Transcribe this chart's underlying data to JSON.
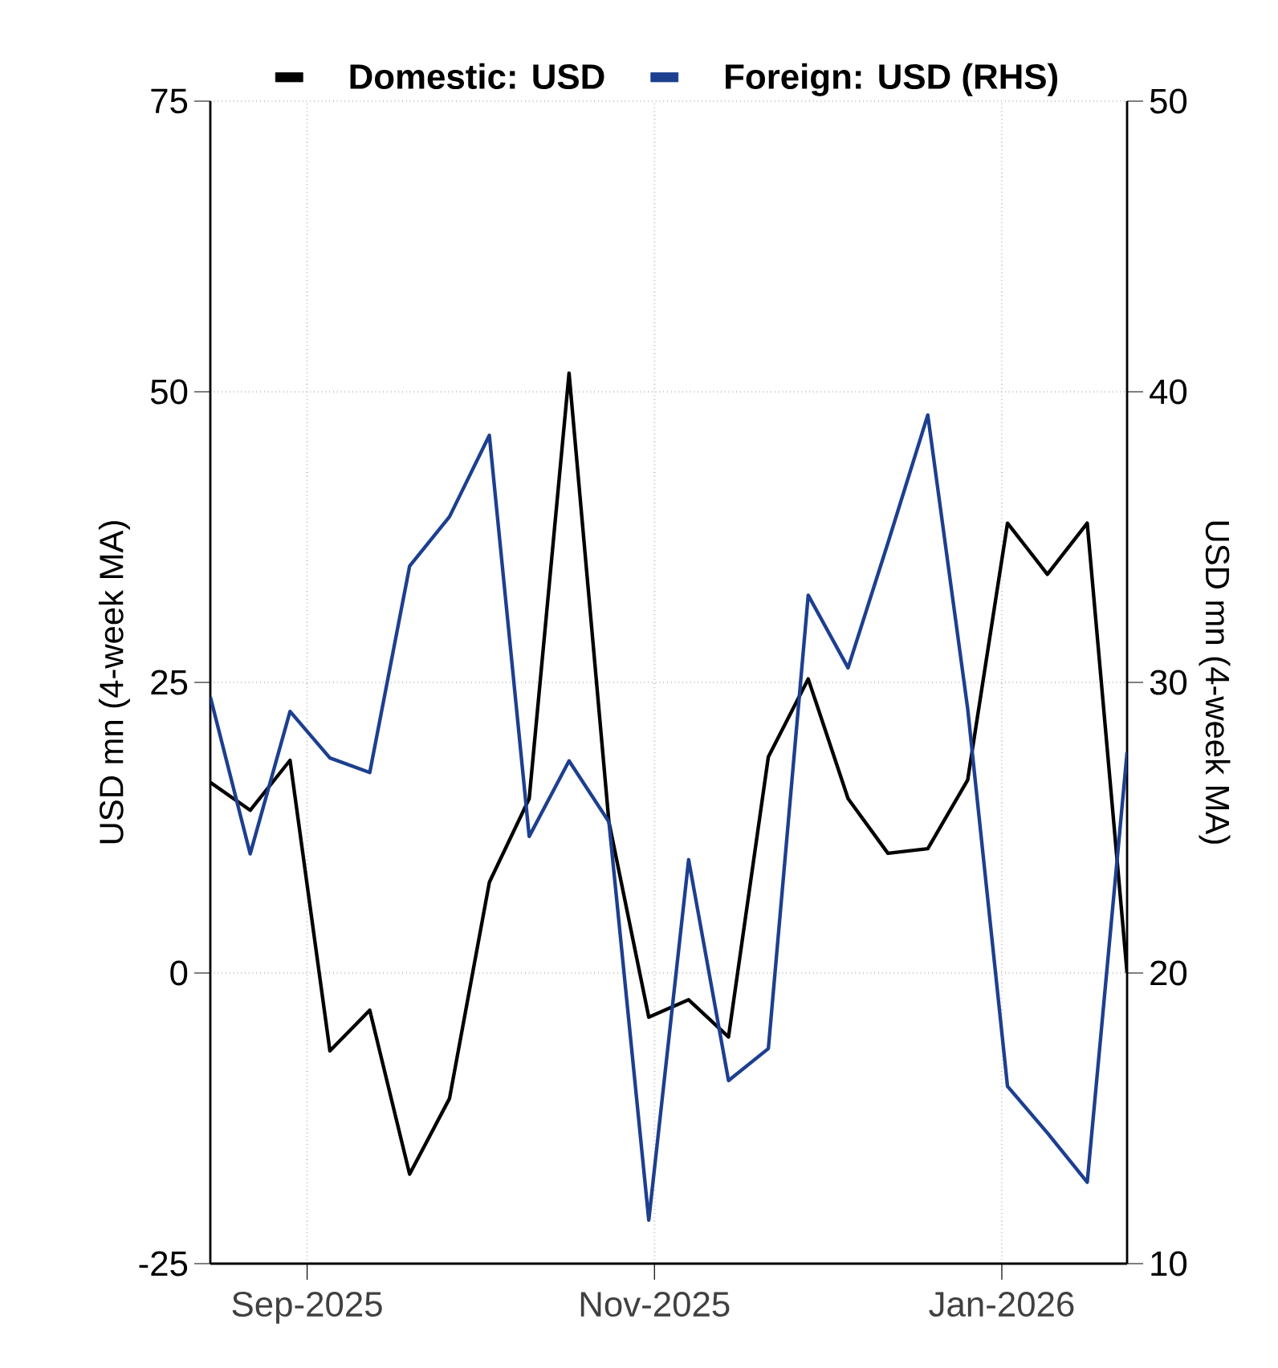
{
  "chart_data": {
    "type": "line",
    "x": [
      "2025-08-15",
      "2025-08-22",
      "2025-08-29",
      "2025-09-05",
      "2025-09-12",
      "2025-09-19",
      "2025-09-26",
      "2025-10-03",
      "2025-10-10",
      "2025-10-17",
      "2025-10-24",
      "2025-10-31",
      "2025-11-07",
      "2025-11-14",
      "2025-11-21",
      "2025-11-28",
      "2025-12-05",
      "2025-12-12",
      "2025-12-19",
      "2025-12-26",
      "2026-01-02",
      "2026-01-09",
      "2026-01-16",
      "2026-01-23"
    ],
    "series": [
      {
        "name": "Domestic: USD",
        "color": "#000000",
        "values": [
          16.4,
          14.0,
          18.3,
          -6.7,
          -3.2,
          -17.3,
          -10.8,
          7.8,
          15.0,
          51.6,
          13.0,
          -3.8,
          -2.3,
          -5.5,
          18.6,
          25.3,
          15.0,
          10.3,
          10.7,
          16.6,
          38.7,
          34.3,
          38.7,
          0.0
        ]
      },
      {
        "name": "Foreign: USD (RHS)",
        "color": "#1d3f8f",
        "axis": "y2",
        "values": [
          29.5,
          24.1,
          29.0,
          27.4,
          26.9,
          34.0,
          35.7,
          38.5,
          24.7,
          27.3,
          25.2,
          11.5,
          23.9,
          16.3,
          17.4,
          33.0,
          30.5,
          34.8,
          39.2,
          29.1,
          16.1,
          14.5,
          12.8,
          27.6
        ]
      }
    ],
    "ylabel": "USD mn (4-week MA)",
    "y2label": "USD mn (4-week MA)",
    "xlim": [
      "2025-08-15",
      "2026-01-23"
    ],
    "xticks": [
      {
        "value": "2025-09-01",
        "label": "Sep-2025"
      },
      {
        "value": "2025-11-01",
        "label": "Nov-2025"
      },
      {
        "value": "2026-01-01",
        "label": "Jan-2026"
      }
    ],
    "ylim": [
      -25,
      75
    ],
    "yticks": [
      -25,
      0,
      25,
      50,
      75
    ],
    "y2lim": [
      10,
      50
    ],
    "y2ticks": [
      10,
      20,
      30,
      40,
      50
    ],
    "grid": true,
    "legend": "top"
  }
}
